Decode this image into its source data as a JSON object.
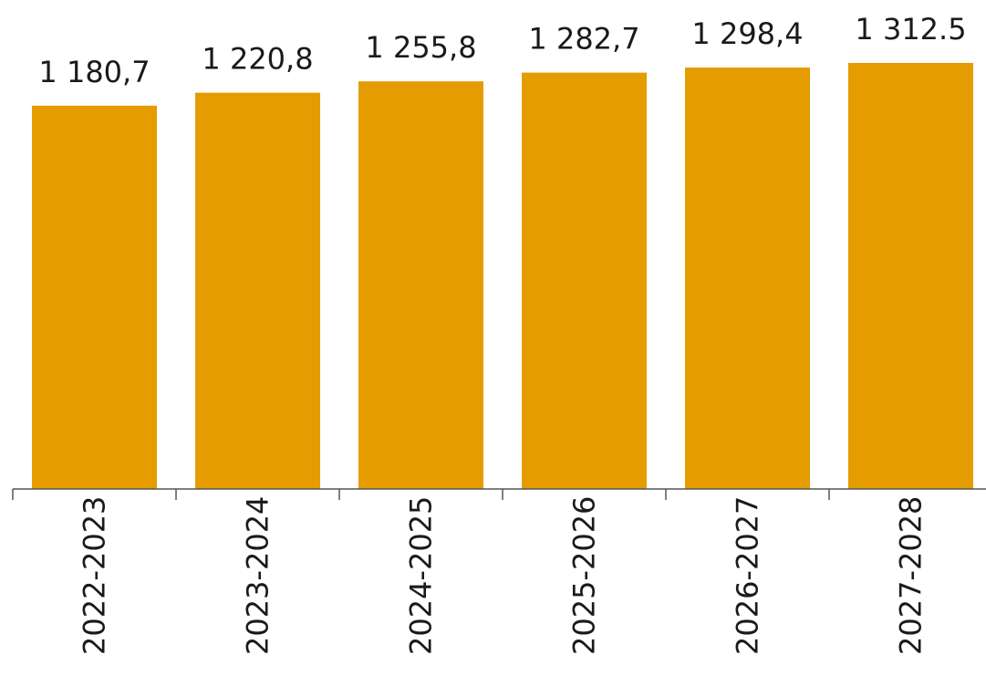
{
  "chart_data": {
    "type": "bar",
    "categories": [
      "2022-2023",
      "2023-2024",
      "2024-2025",
      "2025-2026",
      "2026-2027",
      "2027-2028"
    ],
    "values": [
      1180.7,
      1220.8,
      1255.8,
      1282.7,
      1298.4,
      1312.5
    ],
    "data_labels": [
      "1 180,7",
      "1 220,8",
      "1 255,8",
      "1 282,7",
      "1 298,4",
      "1 312.5"
    ],
    "ylim": [
      0,
      1350
    ],
    "title": "",
    "xlabel": "",
    "ylabel": "",
    "grid": false,
    "legend": "none",
    "bar_color": "#e59c00",
    "axis_color": "#555555"
  }
}
